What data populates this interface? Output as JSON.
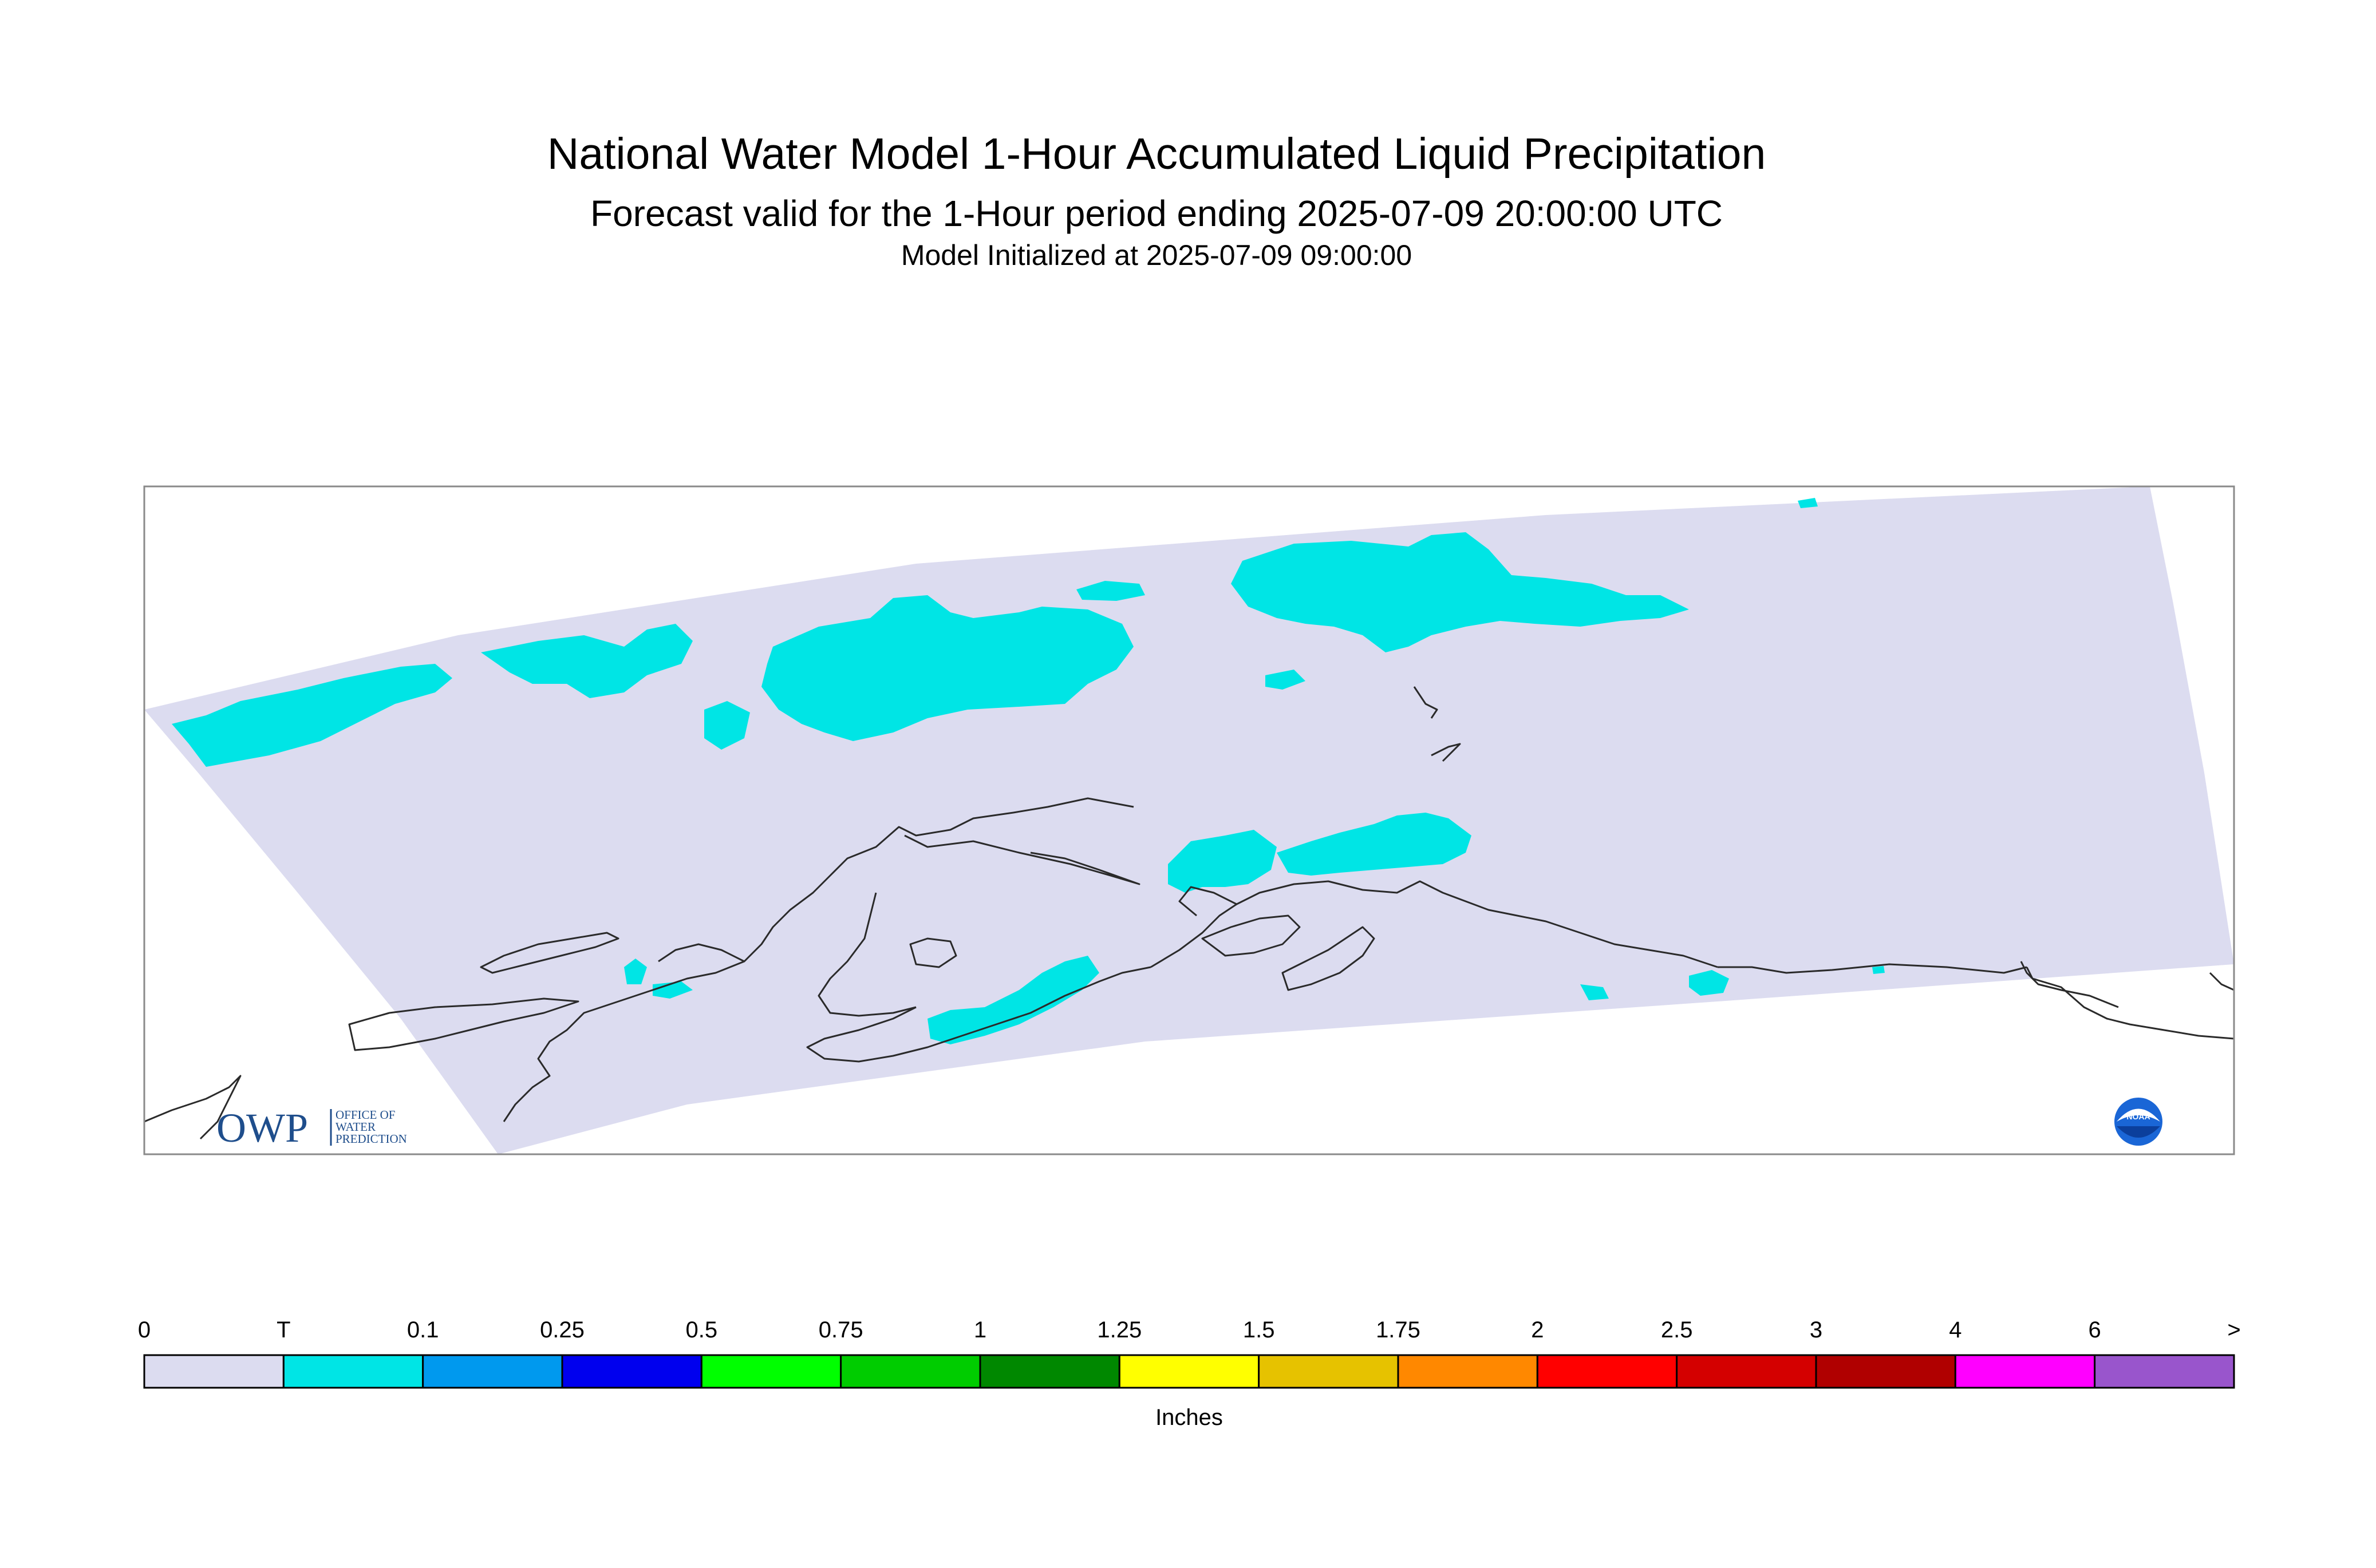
{
  "header": {
    "title": "National Water Model 1-Hour Accumulated Liquid Precipitation",
    "subtitle": "Forecast valid for the 1-Hour period ending 2025-07-09 20:00:00 UTC",
    "init": "Model Initialized at 2025-07-09 09:00:00"
  },
  "map": {
    "region": "Alaska",
    "domain_color": "#dcdcf0",
    "precip_color": "#00e5e5"
  },
  "logos": {
    "owp_mark": "OWP",
    "owp_text": [
      "OFFICE OF",
      "WATER",
      "PREDICTION"
    ],
    "noaa_mark": "NOAA"
  },
  "legend": {
    "unit": "Inches",
    "tick_labels": [
      "0",
      "T",
      "0.1",
      "0.25",
      "0.5",
      "0.75",
      "1",
      "1.25",
      "1.5",
      "1.75",
      "2",
      "2.5",
      "3",
      "4",
      "6",
      ">"
    ],
    "colors": [
      "#dcdcf0",
      "#00e5e5",
      "#0099ee",
      "#0000ee",
      "#00ff00",
      "#00cc00",
      "#008800",
      "#ffff00",
      "#e6c200",
      "#ff8800",
      "#ff0000",
      "#d40000",
      "#b00000",
      "#ff00ff",
      "#9955cc"
    ]
  }
}
